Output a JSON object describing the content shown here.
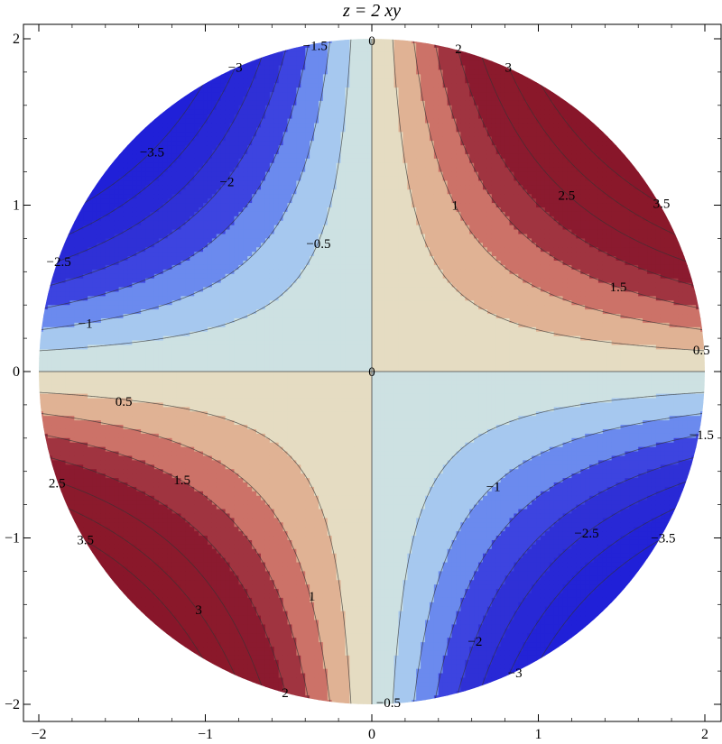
{
  "chart_data": {
    "type": "contour",
    "title": "z = 2 xy",
    "function": "2*x*y",
    "domain": "x^2 + y^2 <= 4",
    "xlim": [
      -2,
      2
    ],
    "ylim": [
      -2,
      2
    ],
    "x_ticks": [
      -2,
      -1,
      0,
      1,
      2
    ],
    "y_ticks": [
      -2,
      -1,
      0,
      1,
      2
    ],
    "x_tick_labels": [
      "−2",
      "−1",
      "0",
      "1",
      "2"
    ],
    "y_tick_labels": [
      "−2",
      "−1",
      "0",
      "1",
      "2"
    ],
    "contour_levels": [
      -3.5,
      -3,
      -2.5,
      -2,
      -1.5,
      -1,
      -0.5,
      0,
      0.5,
      1,
      1.5,
      2,
      2.5,
      3,
      3.5
    ],
    "band_colors": [
      {
        "min": -4.0,
        "max": -3.5,
        "color": "#2020d8"
      },
      {
        "min": -3.5,
        "max": -3.0,
        "color": "#2323d6"
      },
      {
        "min": -3.0,
        "max": -2.5,
        "color": "#2828d6"
      },
      {
        "min": -2.5,
        "max": -2.0,
        "color": "#2f30d6"
      },
      {
        "min": -2.0,
        "max": -1.5,
        "color": "#3d44e0"
      },
      {
        "min": -1.5,
        "max": -1.0,
        "color": "#6b8aee"
      },
      {
        "min": -1.0,
        "max": -0.5,
        "color": "#a6c8ef"
      },
      {
        "min": -0.5,
        "max": 0.0,
        "color": "#cde1e2"
      },
      {
        "min": 0.0,
        "max": 0.5,
        "color": "#e5dcc2"
      },
      {
        "min": 0.5,
        "max": 1.0,
        "color": "#e0b294"
      },
      {
        "min": 1.0,
        "max": 1.5,
        "color": "#cc7268"
      },
      {
        "min": 1.5,
        "max": 2.0,
        "color": "#a03440"
      },
      {
        "min": 2.0,
        "max": 2.5,
        "color": "#8b1a2f"
      },
      {
        "min": 2.5,
        "max": 3.0,
        "color": "#8b1a2c"
      },
      {
        "min": 3.0,
        "max": 3.5,
        "color": "#8a182a"
      },
      {
        "min": 3.5,
        "max": 4.0,
        "color": "#88162a"
      }
    ],
    "contour_labels": [
      {
        "text": "0",
        "x": 0.0,
        "y": 1.99
      },
      {
        "text": "0",
        "x": 0.0,
        "y": 0.0
      },
      {
        "text": "−0.5",
        "x": 0.1,
        "y": -1.99
      },
      {
        "text": "0.5",
        "x": 1.98,
        "y": 0.13
      },
      {
        "text": "0.5",
        "x": -1.49,
        "y": -0.18
      },
      {
        "text": "−0.5",
        "x": -0.32,
        "y": 0.77
      },
      {
        "text": "1",
        "x": 0.5,
        "y": 1.0
      },
      {
        "text": "1",
        "x": -0.36,
        "y": -1.35
      },
      {
        "text": "−1",
        "x": -1.72,
        "y": 0.29
      },
      {
        "text": "−1",
        "x": 0.73,
        "y": -0.69
      },
      {
        "text": "1.5",
        "x": 1.48,
        "y": 0.51
      },
      {
        "text": "1.5",
        "x": -1.14,
        "y": -0.65
      },
      {
        "text": "−1.5",
        "x": -0.34,
        "y": 1.96
      },
      {
        "text": "−1.5",
        "x": 1.98,
        "y": -0.38
      },
      {
        "text": "2",
        "x": 0.52,
        "y": 1.94
      },
      {
        "text": "2",
        "x": -0.52,
        "y": -1.93
      },
      {
        "text": "−2",
        "x": -0.87,
        "y": 1.14
      },
      {
        "text": "−2",
        "x": 0.62,
        "y": -1.62
      },
      {
        "text": "2.5",
        "x": 1.17,
        "y": 1.06
      },
      {
        "text": "2.5",
        "x": -1.89,
        "y": -0.67
      },
      {
        "text": "−2.5",
        "x": -1.88,
        "y": 0.66
      },
      {
        "text": "−2.5",
        "x": 1.29,
        "y": -0.97
      },
      {
        "text": "3",
        "x": 0.82,
        "y": 1.83
      },
      {
        "text": "3",
        "x": -1.04,
        "y": -1.43
      },
      {
        "text": "−3",
        "x": -0.82,
        "y": 1.83
      },
      {
        "text": "−3",
        "x": 0.86,
        "y": -1.81
      },
      {
        "text": "3.5",
        "x": 1.74,
        "y": 1.01
      },
      {
        "text": "3.5",
        "x": -1.72,
        "y": -1.01
      },
      {
        "text": "−3.5",
        "x": -1.32,
        "y": 1.32
      },
      {
        "text": "−3.5",
        "x": 1.75,
        "y": -1.0
      }
    ]
  }
}
